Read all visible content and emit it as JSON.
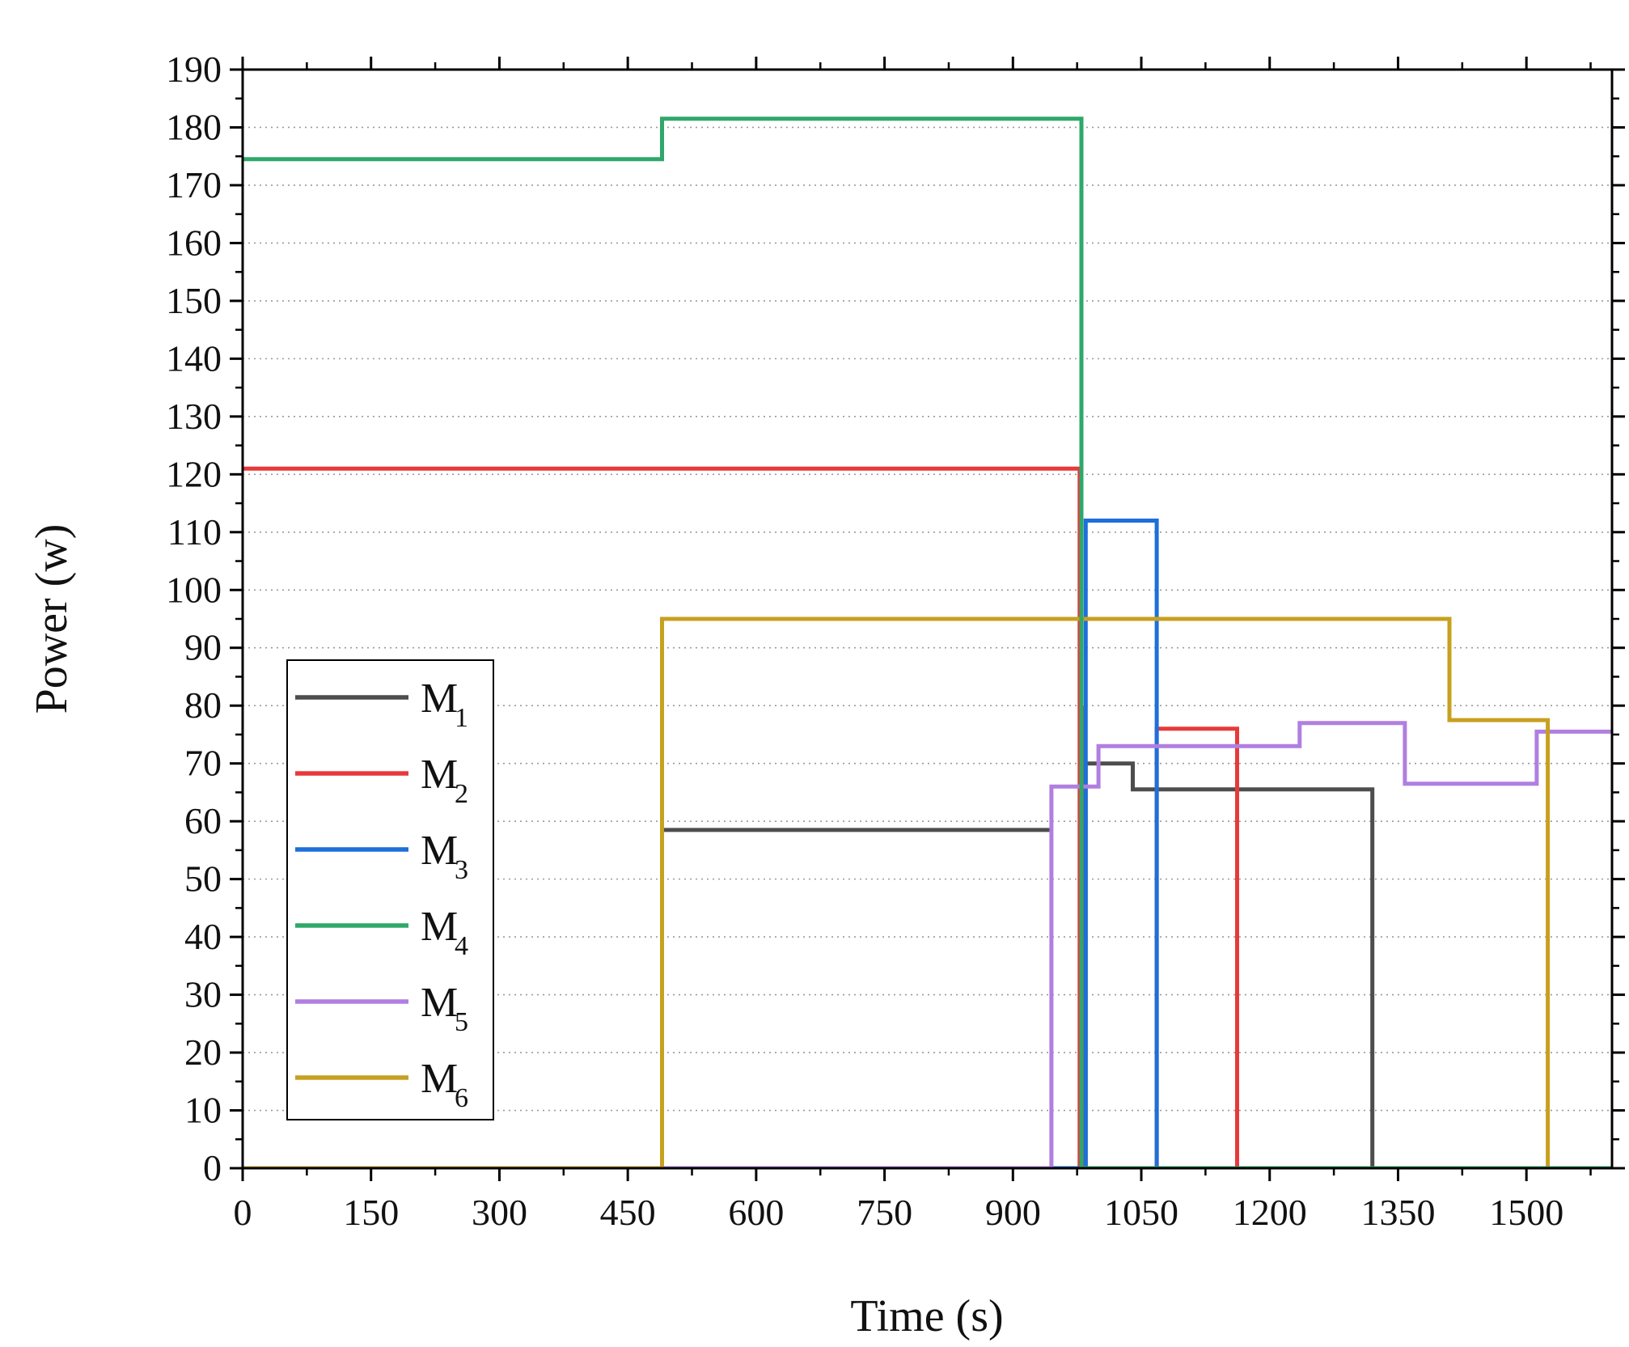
{
  "chart_data": {
    "type": "line",
    "title": "",
    "xlabel": "Time (s)",
    "ylabel": "Power (w)",
    "xlim": [
      0,
      1600
    ],
    "ylim": [
      0,
      190
    ],
    "xticks": [
      0,
      150,
      300,
      450,
      600,
      750,
      900,
      1050,
      1200,
      1350,
      1500
    ],
    "yticks": [
      0,
      10,
      20,
      30,
      40,
      50,
      60,
      70,
      80,
      90,
      100,
      110,
      120,
      130,
      140,
      150,
      160,
      170,
      180,
      190
    ],
    "grid": "horizontal dotted",
    "legend_position": "lower-left",
    "series": [
      {
        "name": "M",
        "sub": "1",
        "color": "#4d4d4d",
        "points": [
          [
            0,
            0
          ],
          [
            980,
            0
          ],
          [
            980,
            12
          ],
          [
            983,
            12
          ],
          [
            983,
            0
          ],
          [
            985,
            0
          ],
          [
            985,
            70
          ],
          [
            1040,
            70
          ],
          [
            1040,
            65.5
          ],
          [
            1320,
            65.5
          ],
          [
            1320,
            0
          ],
          [
            1600,
            0
          ]
        ],
        "points_extra": [
          [
            490,
            58.5
          ],
          [
            943,
            58.5
          ]
        ]
      },
      {
        "name": "M",
        "sub": "2",
        "color": "#e8393a",
        "points": [
          [
            0,
            121
          ],
          [
            978,
            121
          ],
          [
            978,
            0
          ],
          [
            1600,
            0
          ]
        ],
        "points_extra": [
          [
            983,
            80
          ],
          [
            983,
            0
          ],
          [
            1068,
            0
          ],
          [
            1068,
            76
          ],
          [
            1162,
            76
          ],
          [
            1162,
            0
          ]
        ]
      },
      {
        "name": "M",
        "sub": "3",
        "color": "#1e6fd9",
        "points": [
          [
            0,
            0
          ],
          [
            985,
            0
          ],
          [
            985,
            112
          ],
          [
            1068,
            112
          ],
          [
            1068,
            0
          ],
          [
            1600,
            0
          ]
        ]
      },
      {
        "name": "M",
        "sub": "4",
        "color": "#2ea86a",
        "points": [
          [
            0,
            174.5
          ],
          [
            490,
            174.5
          ],
          [
            490,
            181.5
          ],
          [
            980,
            181.5
          ],
          [
            980,
            0
          ],
          [
            1600,
            0
          ]
        ]
      },
      {
        "name": "M",
        "sub": "5",
        "color": "#b07fe0",
        "points": [
          [
            0,
            0
          ],
          [
            945,
            0
          ],
          [
            945,
            66
          ],
          [
            1000,
            66
          ],
          [
            1000,
            73
          ],
          [
            1235,
            73
          ],
          [
            1235,
            77
          ],
          [
            1358,
            77
          ],
          [
            1358,
            66.5
          ],
          [
            1512,
            66.5
          ],
          [
            1512,
            75.5
          ],
          [
            1600,
            75.5
          ]
        ]
      },
      {
        "name": "M",
        "sub": "6",
        "color": "#c8a020",
        "points": [
          [
            0,
            0
          ],
          [
            490,
            0
          ],
          [
            490,
            95
          ],
          [
            1410,
            95
          ],
          [
            1410,
            77.5
          ],
          [
            1525,
            77.5
          ],
          [
            1525,
            0
          ],
          [
            1600,
            0
          ]
        ]
      }
    ]
  }
}
